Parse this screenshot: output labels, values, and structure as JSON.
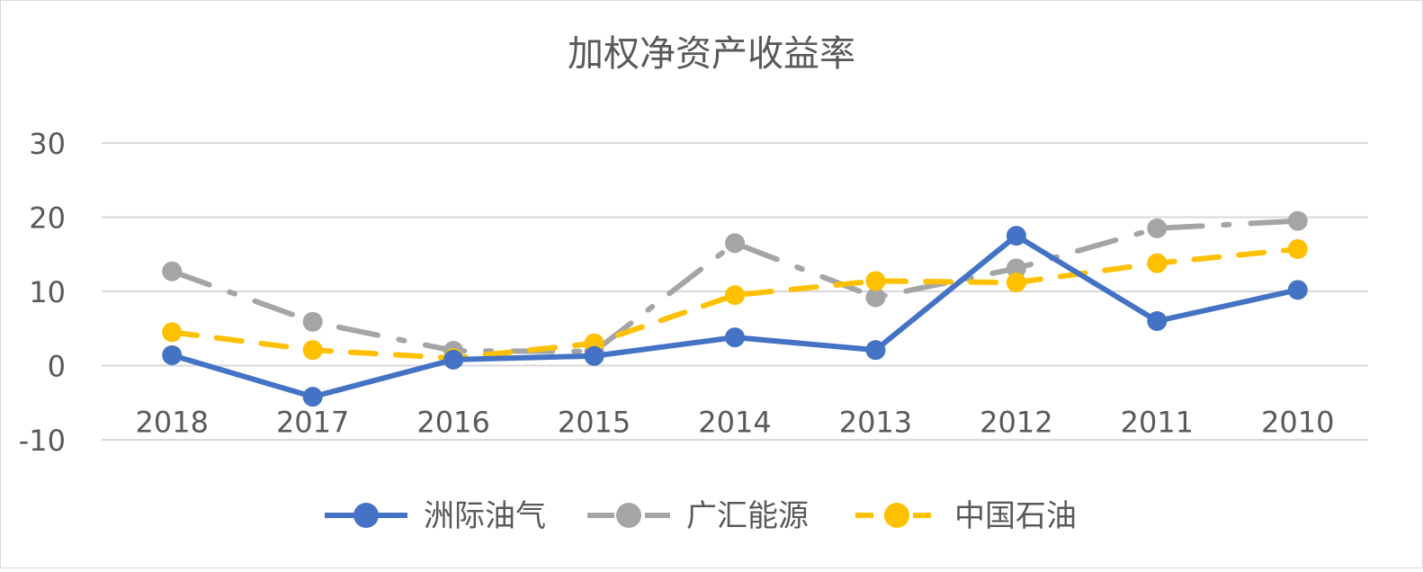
{
  "chart_data": {
    "type": "line",
    "title": "加权净资产收益率",
    "categories": [
      "2018",
      "2017",
      "2016",
      "2015",
      "2014",
      "2013",
      "2012",
      "2011",
      "2010"
    ],
    "ylim": [
      -10,
      30
    ],
    "yticks": [
      "30",
      "20",
      "10",
      "0",
      "-10"
    ],
    "grid": true,
    "legend_position": "bottom",
    "series": [
      {
        "name": "洲际油气",
        "color": "#4472C4",
        "dash": "solid",
        "values": [
          1.4,
          -4.2,
          0.8,
          1.3,
          3.8,
          2.1,
          17.5,
          6.0,
          10.2
        ]
      },
      {
        "name": "广汇能源",
        "color": "#A5A5A5",
        "dash": "longdashdot",
        "values": [
          12.7,
          5.9,
          2.0,
          1.9,
          16.5,
          9.2,
          13.1,
          18.5,
          19.5
        ]
      },
      {
        "name": "中国石油",
        "color": "#FFC000",
        "dash": "dash",
        "values": [
          4.5,
          2.1,
          1.0,
          3.0,
          9.5,
          11.4,
          11.2,
          13.8,
          15.7
        ]
      }
    ]
  }
}
